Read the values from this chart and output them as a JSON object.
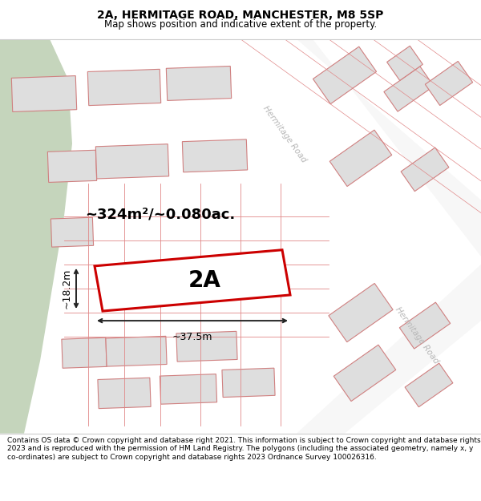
{
  "title_line1": "2A, HERMITAGE ROAD, MANCHESTER, M8 5SP",
  "title_line2": "Map shows position and indicative extent of the property.",
  "footer_text": "Contains OS data © Crown copyright and database right 2021. This information is subject to Crown copyright and database rights 2023 and is reproduced with the permission of HM Land Registry. The polygons (including the associated geometry, namely x, y co-ordinates) are subject to Crown copyright and database rights 2023 Ordnance Survey 100026316.",
  "map_bg": "#f0efea",
  "green_color": "#c5d5bc",
  "road_bg": "#f5f5f5",
  "block_fill": "#dedede",
  "block_stroke": "#d08080",
  "highlight_stroke": "#cc0000",
  "dim_color": "#222222",
  "area_text": "~324m²/~0.080ac.",
  "label_text": "2A",
  "dim_width": "~37.5m",
  "dim_height": "~18.2m",
  "hermitage_road_label": "Hermitage Road",
  "road_label_color": "#b8b8b8",
  "title_fontsize": 10,
  "subtitle_fontsize": 8.5,
  "footer_fontsize": 6.5
}
